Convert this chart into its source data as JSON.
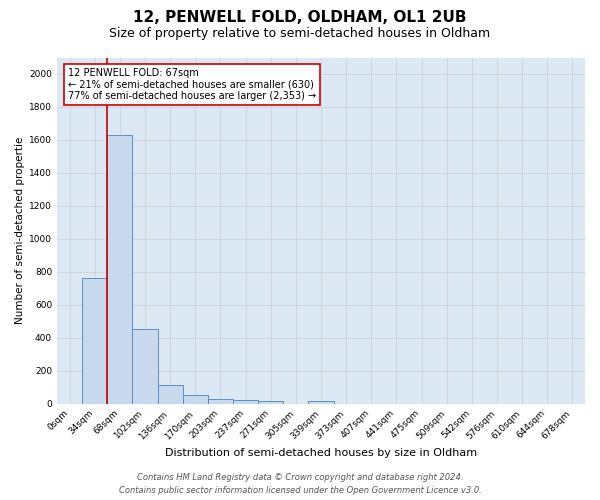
{
  "title": "12, PENWELL FOLD, OLDHAM, OL1 2UB",
  "subtitle": "Size of property relative to semi-detached houses in Oldham",
  "xlabel": "Distribution of semi-detached houses by size in Oldham",
  "ylabel": "Number of semi-detached propertie",
  "footer_line1": "Contains HM Land Registry data © Crown copyright and database right 2024.",
  "footer_line2": "Contains public sector information licensed under the Open Government Licence v3.0.",
  "bar_labels": [
    "0sqm",
    "34sqm",
    "68sqm",
    "102sqm",
    "136sqm",
    "170sqm",
    "203sqm",
    "237sqm",
    "271sqm",
    "305sqm",
    "339sqm",
    "373sqm",
    "407sqm",
    "441sqm",
    "475sqm",
    "509sqm",
    "542sqm",
    "576sqm",
    "610sqm",
    "644sqm",
    "678sqm"
  ],
  "bar_values": [
    0,
    760,
    1630,
    450,
    110,
    50,
    30,
    20,
    15,
    0,
    15,
    0,
    0,
    0,
    0,
    0,
    0,
    0,
    0,
    0,
    0
  ],
  "bar_color": "#c9d9ed",
  "bar_edge_color": "#5b8fc9",
  "marker_index": 2,
  "marker_color": "#cc0000",
  "annotation_title": "12 PENWELL FOLD: 67sqm",
  "annotation_line1": "← 21% of semi-detached houses are smaller (630)",
  "annotation_line2": "77% of semi-detached houses are larger (2,353) →",
  "annotation_box_color": "#ffffff",
  "annotation_box_edge": "#cc0000",
  "ylim": [
    0,
    2100
  ],
  "yticks": [
    0,
    200,
    400,
    600,
    800,
    1000,
    1200,
    1400,
    1600,
    1800,
    2000
  ],
  "grid_color": "#cccccc",
  "bg_color": "#dde8f5",
  "title_fontsize": 11,
  "subtitle_fontsize": 9,
  "xlabel_fontsize": 8,
  "ylabel_fontsize": 7.5,
  "tick_fontsize": 6.5,
  "footer_fontsize": 6,
  "annotation_fontsize": 7
}
